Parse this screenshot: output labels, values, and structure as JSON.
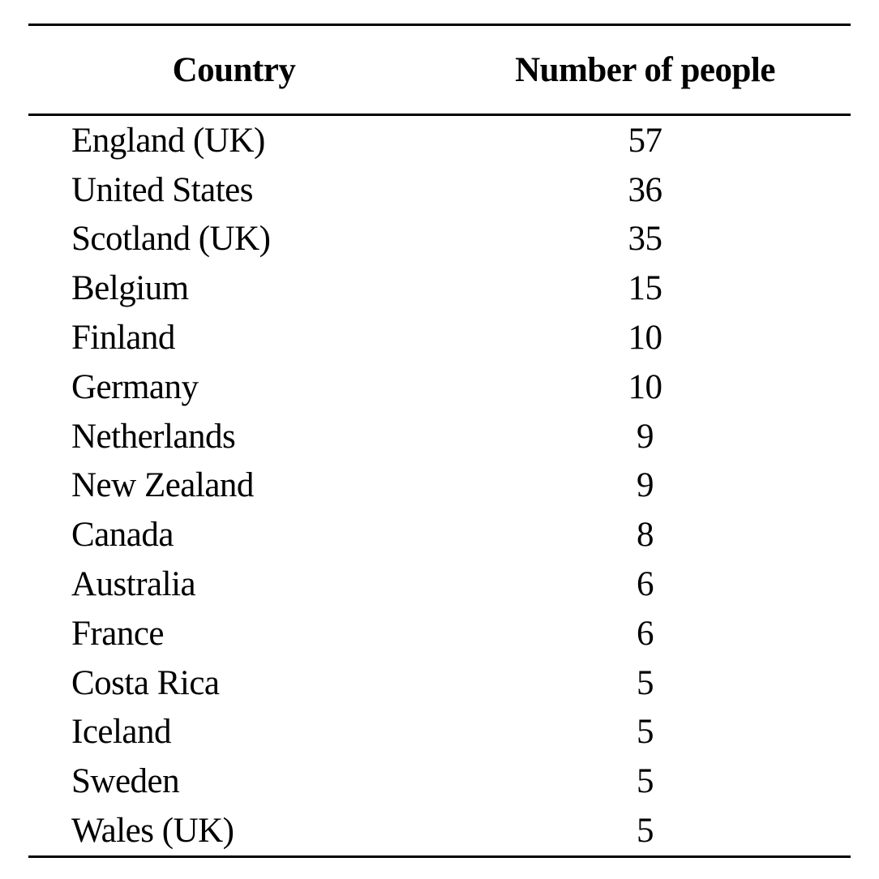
{
  "chart_data": {
    "type": "table",
    "title": "",
    "columns": [
      "Country",
      "Number of people"
    ],
    "categories": [
      "England (UK)",
      "United States",
      "Scotland (UK)",
      "Belgium",
      "Finland",
      "Germany",
      "Netherlands",
      "New Zealand",
      "Canada",
      "Australia",
      "France",
      "Costa Rica",
      "Iceland",
      "Sweden",
      "Wales (UK)"
    ],
    "values": [
      57,
      36,
      35,
      15,
      10,
      10,
      9,
      9,
      8,
      6,
      6,
      5,
      5,
      5,
      5
    ],
    "layout": {
      "rules": "horizontal only: top, below header, bottom",
      "country_align": "left",
      "count_align": "center",
      "numeral_style": "oldstyle"
    }
  },
  "colors": {
    "background": "#ffffff",
    "text": "#000000",
    "rule": "#000000"
  }
}
